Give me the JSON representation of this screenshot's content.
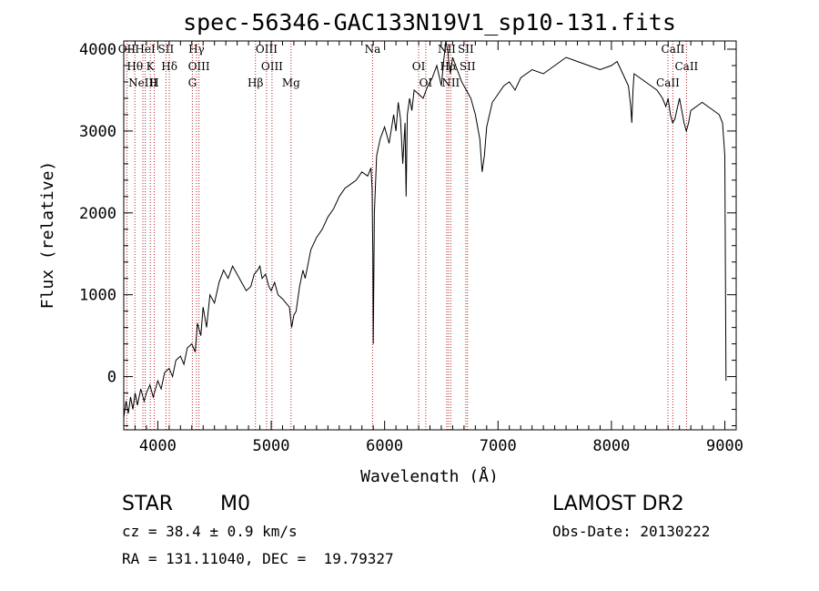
{
  "chart_data": {
    "type": "line",
    "title": "spec-56346-GAC133N19V1_sp10-131.fits",
    "xlabel": "Wavelength (Å)",
    "ylabel": "Flux (relative)",
    "xlim": [
      3700,
      9100
    ],
    "ylim": [
      -650,
      4100
    ],
    "x_ticks": [
      4000,
      5000,
      6000,
      7000,
      8000,
      9000
    ],
    "y_ticks": [
      0,
      1000,
      2000,
      3000,
      4000
    ],
    "grid": false,
    "series": [
      {
        "x": [
          3700,
          3720,
          3740,
          3760,
          3780,
          3800,
          3820,
          3850,
          3880,
          3900,
          3930,
          3960,
          4000,
          4030,
          4060,
          4100,
          4130,
          4160,
          4200,
          4230,
          4260,
          4300,
          4330,
          4350,
          4380,
          4400,
          4430,
          4460,
          4500,
          4540,
          4580,
          4620,
          4660,
          4700,
          4740,
          4780,
          4820,
          4850,
          4880,
          4900,
          4920,
          4950,
          4980,
          5000,
          5030,
          5060,
          5100,
          5130,
          5160,
          5180,
          5200,
          5220,
          5250,
          5280,
          5300,
          5350,
          5400,
          5450,
          5500,
          5550,
          5600,
          5650,
          5700,
          5750,
          5800,
          5850,
          5880,
          5890,
          5896,
          5900,
          5910,
          5930,
          5960,
          6000,
          6040,
          6080,
          6100,
          6120,
          6140,
          6160,
          6180,
          6190,
          6200,
          6220,
          6240,
          6260,
          6300,
          6340,
          6380,
          6420,
          6460,
          6500,
          6520,
          6540,
          6560,
          6565,
          6580,
          6600,
          6640,
          6680,
          6720,
          6760,
          6800,
          6840,
          6860,
          6880,
          6900,
          6950,
          7000,
          7050,
          7100,
          7150,
          7200,
          7300,
          7400,
          7500,
          7600,
          7700,
          7800,
          7900,
          8000,
          8050,
          8100,
          8150,
          8170,
          8180,
          8190,
          8200,
          8250,
          8300,
          8350,
          8400,
          8450,
          8480,
          8500,
          8520,
          8540,
          8560,
          8600,
          8640,
          8660,
          8680,
          8700,
          8750,
          8800,
          8850,
          8900,
          8950,
          8980,
          9000,
          9010
        ],
        "y": [
          -500,
          -300,
          -450,
          -250,
          -400,
          -200,
          -350,
          -150,
          -300,
          -200,
          -100,
          -250,
          -50,
          -150,
          50,
          100,
          0,
          200,
          250,
          150,
          350,
          400,
          300,
          650,
          500,
          850,
          600,
          1000,
          900,
          1150,
          1300,
          1200,
          1350,
          1250,
          1150,
          1050,
          1100,
          1250,
          1300,
          1350,
          1200,
          1250,
          1100,
          1050,
          1150,
          1000,
          950,
          900,
          850,
          600,
          750,
          800,
          1100,
          1300,
          1200,
          1550,
          1700,
          1800,
          1950,
          2050,
          2200,
          2300,
          2350,
          2400,
          2500,
          2450,
          2550,
          2300,
          1500,
          400,
          2000,
          2700,
          2900,
          3050,
          2850,
          3200,
          3000,
          3350,
          3150,
          2600,
          3100,
          2200,
          3200,
          3400,
          3250,
          3500,
          3450,
          3400,
          3550,
          3650,
          3800,
          3550,
          3850,
          4100,
          3950,
          3850,
          3700,
          3900,
          3750,
          3600,
          3500,
          3400,
          3200,
          2900,
          2500,
          2700,
          3050,
          3350,
          3450,
          3550,
          3600,
          3500,
          3650,
          3750,
          3700,
          3800,
          3900,
          3850,
          3800,
          3750,
          3800,
          3850,
          3700,
          3550,
          3300,
          3100,
          3500,
          3700,
          3650,
          3600,
          3550,
          3500,
          3400,
          3300,
          3400,
          3200,
          3100,
          3150,
          3400,
          3100,
          3000,
          3100,
          3250,
          3300,
          3350,
          3300,
          3250,
          3200,
          3100,
          2700,
          -50
        ],
        "color": "#000000"
      }
    ],
    "line_markers": [
      {
        "x": 3727,
        "labels": [
          "OII"
        ]
      },
      {
        "x": 3798,
        "labels": [
          "Hθ"
        ]
      },
      {
        "x": 3869,
        "labels": [
          "NeIII"
        ]
      },
      {
        "x": 3889,
        "labels": [
          "HeI"
        ]
      },
      {
        "x": 3934,
        "labels": [
          "K"
        ]
      },
      {
        "x": 3969,
        "labels": [
          "H"
        ]
      },
      {
        "x": 4072,
        "labels": [
          "SII"
        ]
      },
      {
        "x": 4102,
        "labels": [
          "Hδ"
        ]
      },
      {
        "x": 4305,
        "labels": [
          "G"
        ]
      },
      {
        "x": 4341,
        "labels": [
          "Hγ"
        ]
      },
      {
        "x": 4363,
        "labels": [
          "OIII"
        ]
      },
      {
        "x": 4861,
        "labels": [
          "Hβ"
        ]
      },
      {
        "x": 4959,
        "labels": [
          "OIII"
        ]
      },
      {
        "x": 5007,
        "labels": [
          "OIII"
        ]
      },
      {
        "x": 5175,
        "labels": [
          "Mg"
        ]
      },
      {
        "x": 5894,
        "labels": [
          "Na"
        ]
      },
      {
        "x": 6300,
        "labels": [
          "OI"
        ]
      },
      {
        "x": 6363,
        "labels": [
          "OI"
        ]
      },
      {
        "x": 6548,
        "labels": [
          "NII"
        ]
      },
      {
        "x": 6563,
        "labels": [
          "Hα"
        ]
      },
      {
        "x": 6583,
        "labels": [
          "NII"
        ]
      },
      {
        "x": 6716,
        "labels": [
          "SII"
        ]
      },
      {
        "x": 6731,
        "labels": [
          "SII"
        ]
      },
      {
        "x": 8498,
        "labels": [
          "CaII"
        ]
      },
      {
        "x": 8542,
        "labels": [
          "CaII"
        ]
      },
      {
        "x": 8662,
        "labels": [
          "CaII"
        ]
      }
    ]
  },
  "info": {
    "class_label": "STAR",
    "subclass": "M0",
    "survey": "LAMOST DR2",
    "redshift": "cz = 38.4 ± 0.9 km/s",
    "obs_date": "Obs-Date: 20130222",
    "coords": "RA = 131.11040, DEC =  19.79327"
  }
}
